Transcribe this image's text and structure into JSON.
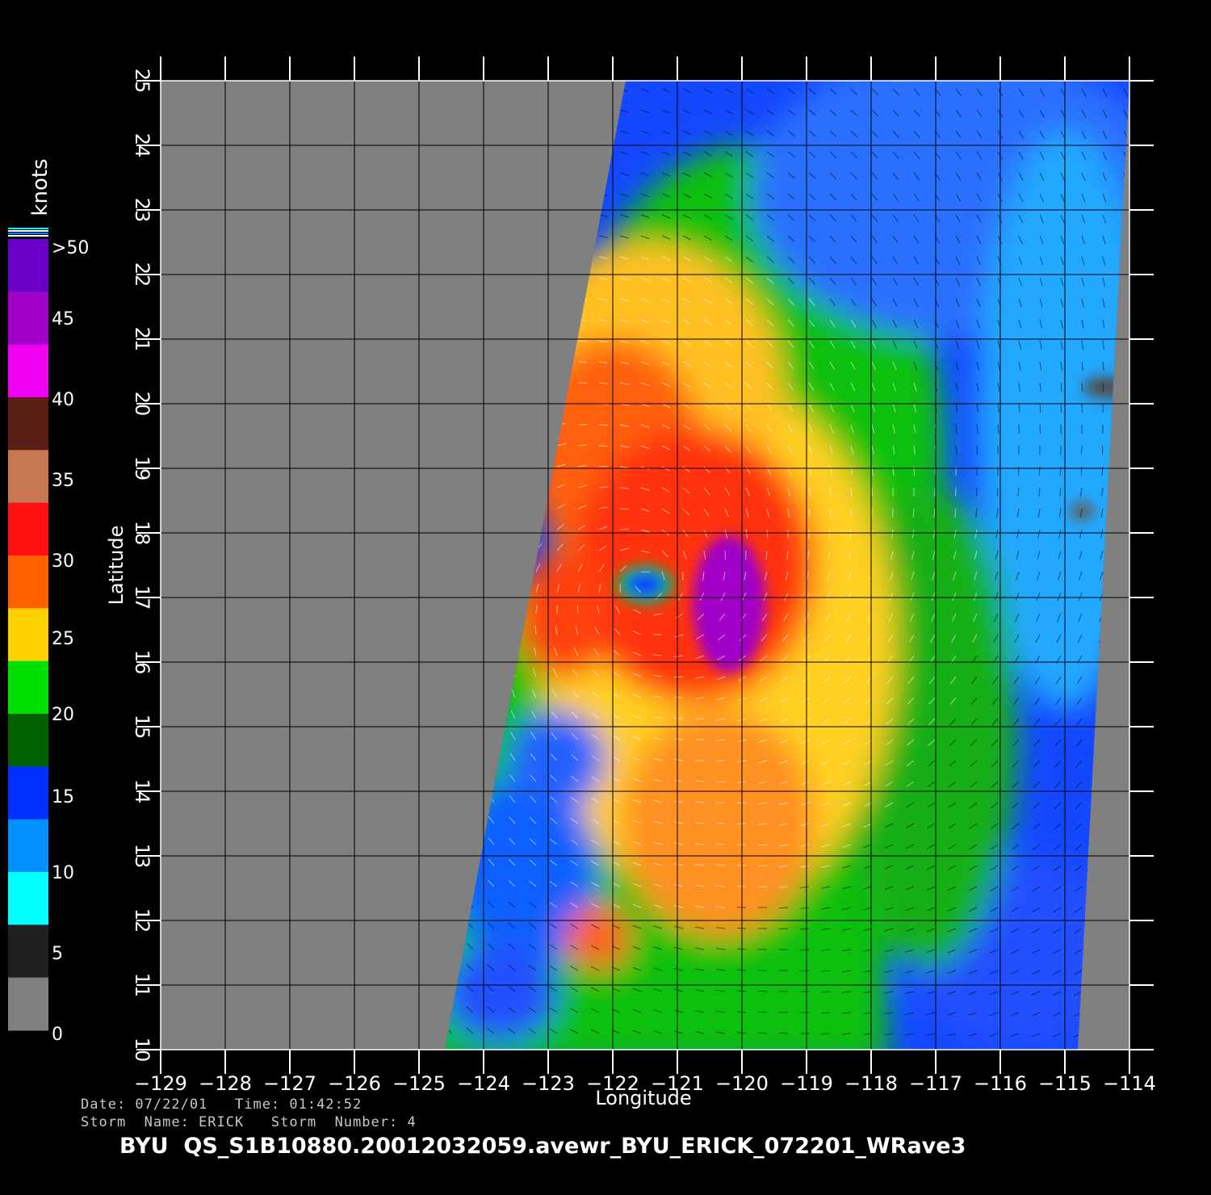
{
  "map": {
    "xlabel": "Longitude",
    "ylabel": "Latitude",
    "lon_range": [
      -129,
      -114
    ],
    "lat_range": [
      10,
      25
    ],
    "lon_ticks": [
      -129,
      -128,
      -127,
      -126,
      -125,
      -124,
      -123,
      -122,
      -121,
      -120,
      -119,
      -118,
      -117,
      -116,
      -115,
      -114
    ],
    "lat_ticks": [
      10,
      11,
      12,
      13,
      14,
      15,
      16,
      17,
      18,
      19,
      20,
      21,
      22,
      23,
      24,
      25
    ],
    "grid": true,
    "no_data_color": "#808080",
    "storm_center": {
      "lon": -121.5,
      "lat": 17.2
    },
    "max_wind_center": {
      "lon": -120.2,
      "lat": 16.9
    },
    "swath_west_edge": [
      [
        -124.6,
        10
      ],
      [
        -121.8,
        25
      ]
    ],
    "swath_east_edge": [
      [
        -114.8,
        10
      ],
      [
        -114,
        25
      ]
    ]
  },
  "colorbar": {
    "units_label": "knots",
    "labels": [
      ">50",
      "45",
      "40",
      "35",
      "30",
      "25",
      "20",
      "15",
      "10",
      "5",
      "0"
    ],
    "colors_top_to_bottom": [
      "#6a00c8",
      "#a000c8",
      "#f000f0",
      "#5a1e14",
      "#c87850",
      "#ff1010",
      "#ff6000",
      "#ffd000",
      "#00e000",
      "#006000",
      "#0030ff",
      "#0090ff",
      "#00ffff",
      "#202020",
      "#808080"
    ]
  },
  "footer": {
    "date_line": "Date: 07/22/01   Time: 01:42:52",
    "storm_line": "Storm  Name: ERICK   Storm  Number: 4",
    "filename": "BYU  QS_S1B10880.20012032059.avewr_BYU_ERICK_072201_WRave3"
  }
}
